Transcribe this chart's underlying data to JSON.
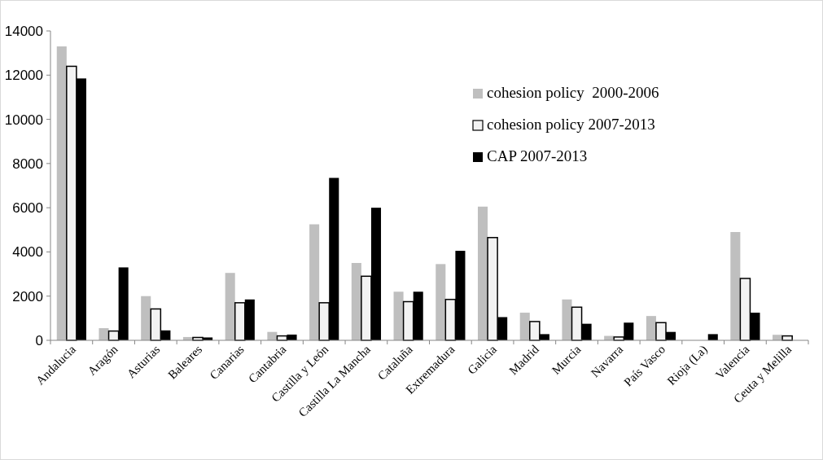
{
  "chart_data": {
    "type": "bar",
    "categories": [
      "Andalucia",
      "Aragón",
      "Asturias",
      "Baleares",
      "Canarias",
      "Cantabria",
      "Castilla y León",
      "Castilla La Mancha",
      "Cataluña",
      "Extremadura",
      "Galicia",
      "Madrid",
      "Murcia",
      "Navarra",
      "País Vasco",
      "Rioja (La)",
      "Valencia",
      "Ceuta y Melilla"
    ],
    "series": [
      {
        "name": "cohesion policy  2000-2006",
        "color": "#bfbfbf",
        "values": [
          13300,
          550,
          2000,
          150,
          3050,
          380,
          5250,
          3500,
          2200,
          3450,
          6050,
          1250,
          1850,
          200,
          1100,
          null,
          4900,
          250
        ]
      },
      {
        "name": "cohesion policy 2007-2013",
        "color": "#f2f2f2",
        "values": [
          12400,
          420,
          1420,
          130,
          1700,
          200,
          1700,
          2900,
          1750,
          1850,
          4650,
          850,
          1500,
          150,
          800,
          null,
          2800,
          200
        ]
      },
      {
        "name": "CAP 2007-2013",
        "color": "#000000",
        "values": [
          11850,
          3300,
          450,
          130,
          1850,
          260,
          7350,
          6000,
          2200,
          4050,
          1050,
          280,
          750,
          800,
          380,
          280,
          1250,
          null
        ]
      }
    ],
    "ylim": [
      0,
      14000
    ],
    "yticks": [
      0,
      2000,
      4000,
      6000,
      8000,
      10000,
      12000,
      14000
    ],
    "legend": "top right"
  }
}
